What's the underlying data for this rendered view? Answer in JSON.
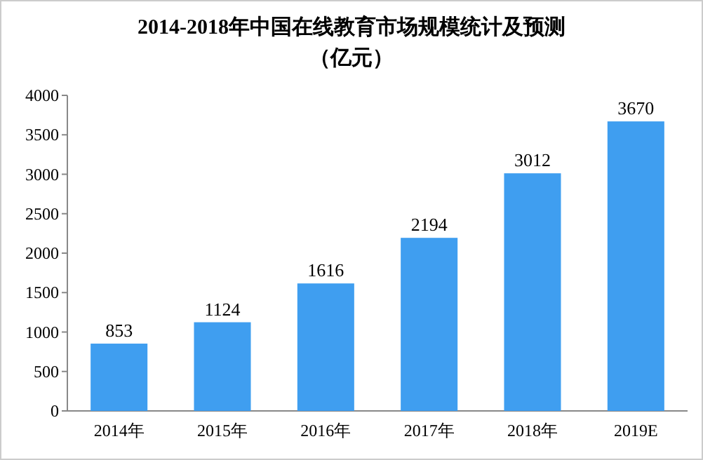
{
  "chart_data": {
    "type": "bar",
    "title": "2014-2018年中国在线教育市场规模统计及预测",
    "subtitle": "（亿元）",
    "categories": [
      "2014年",
      "2015年",
      "2016年",
      "2017年",
      "2018年",
      "2019E"
    ],
    "values": [
      853,
      1124,
      1616,
      2194,
      3012,
      3670
    ],
    "color": "#3f9ef0",
    "ylim": [
      0,
      4000
    ],
    "yticks": [
      0,
      500,
      1000,
      1500,
      2000,
      2500,
      3000,
      3500,
      4000
    ],
    "data_labels": true
  }
}
